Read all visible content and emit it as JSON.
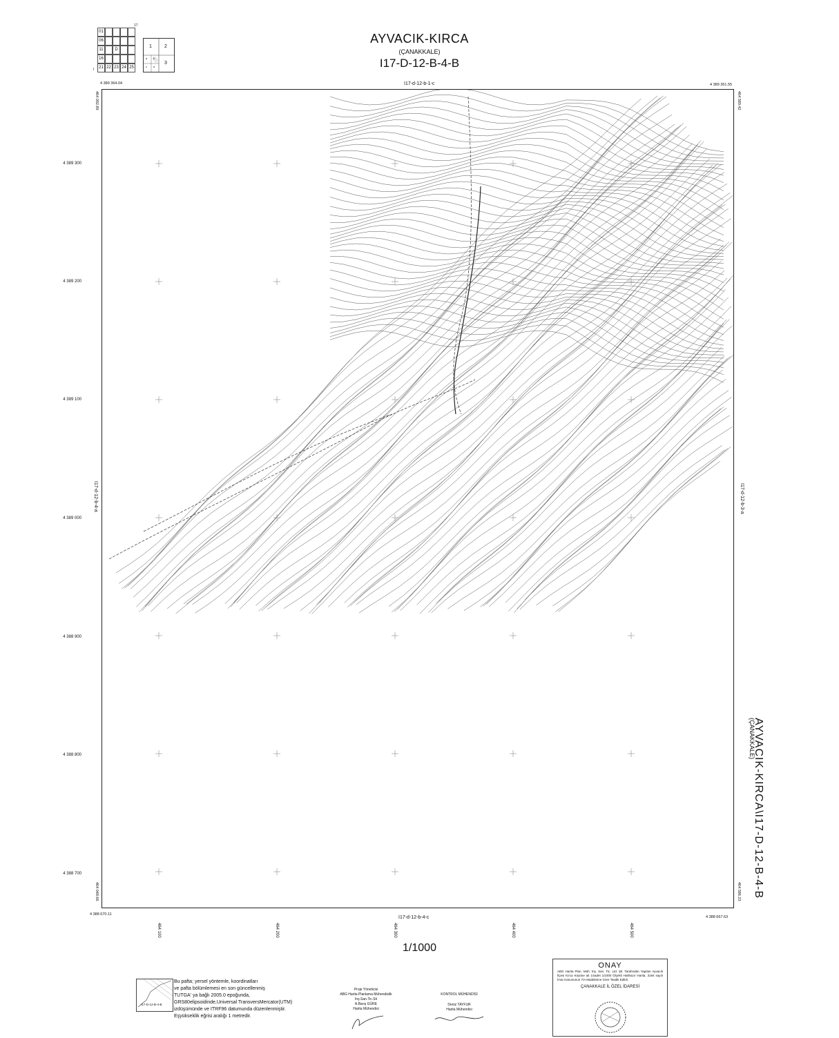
{
  "title": "AYVACIK-KIRCA",
  "province": "(ÇANAKKALE)",
  "sheet_id": "I17-D-12-B-4-B",
  "side_title": "AYVACIK-KIRCA\\I17-D-12-B-4-B",
  "side_province": "(ÇANAKKALE)",
  "index_grid": {
    "rows": [
      [
        "01",
        "",
        "",
        "",
        ""
      ],
      [
        "06",
        "",
        "",
        "",
        ""
      ],
      [
        "11",
        "",
        "D",
        "",
        ""
      ],
      [
        "16",
        "",
        "",
        "",
        ""
      ],
      [
        "21",
        "22",
        "23",
        "24",
        "25"
      ]
    ],
    "top_number": "17",
    "left_number": "I",
    "sub_labels": [
      "1",
      "2",
      "3"
    ],
    "sub_small": [
      "a",
      "b",
      "c",
      "d"
    ]
  },
  "adjacent_sheets": {
    "top": "I17-d-12-b-1-c",
    "bottom": "I17-d-12-b-4-c",
    "left": "I17-d-12-b-4-a",
    "right": "I17-d-12-b-3-a"
  },
  "corners": {
    "top_left_northing": "4 389 364.04",
    "top_left_easting": "464 092.89",
    "top_right_northing": "4 389 361.55",
    "top_right_easting": "464 589.42",
    "bottom_left_northing": "4 388 670.11",
    "bottom_left_easting": "464 048.66",
    "bottom_right_northing": "4 388 667.63",
    "bottom_right_easting": "464 586.23"
  },
  "northings": [
    "4 389 300",
    "4 389 200",
    "4 389 100",
    "4 389 000",
    "4 388 900",
    "4 388 800",
    "4 388 700"
  ],
  "eastings": [
    "464 100",
    "464 200",
    "464 300",
    "464 400",
    "464 500"
  ],
  "scale": "1/1000",
  "notes_lines": [
    "Bu pafta; yersel yöntemle, koordinatları",
    "ve  pafta bölümlemesi en son güncellenmiş",
    "TUTGA' ya  bağlı  2005.0   epoğunda,",
    "GRS80elipsoidinde,Universal TransversMercator(UTM)",
    "izdüşümünde ve ITRF96 datumunda düzenlenmiştir.",
    "Eşyükseklik eğrisi aralığı 1 metredir."
  ],
  "mini_sheet_label": "I17-D-12-B-4-B",
  "signatures": {
    "project": [
      "Proje Yöneticisi",
      "ABG Harita Planlama Mühendislik",
      "İnş.San.Tic.Sti",
      "A.Barış GÜRE",
      "Harita Mühendisi"
    ],
    "control": [
      "KONTROL MÜHENDİSİ",
      "Deniz TAYFUR",
      "Harita Mühendisi"
    ]
  },
  "onay": {
    "title": "ONAY",
    "text": "ABG Harita Plan. Müh. İnş. San. Tic. Ltd. Şti.  Tarafından Yapılan Ayvacık İlçesi Kırca Köyüne ait 1Sadet 1/1000 Ölçekli Halihazır Harita, 3194 sayılı İmar Kanununun 7/A Maddesine Göre Tasdik Edildi.",
    "office": "ÇANAKKALE İL ÖZEL İDARESİ"
  },
  "colors": {
    "ink": "#222222",
    "contour": "#555555",
    "road": "#333333"
  }
}
